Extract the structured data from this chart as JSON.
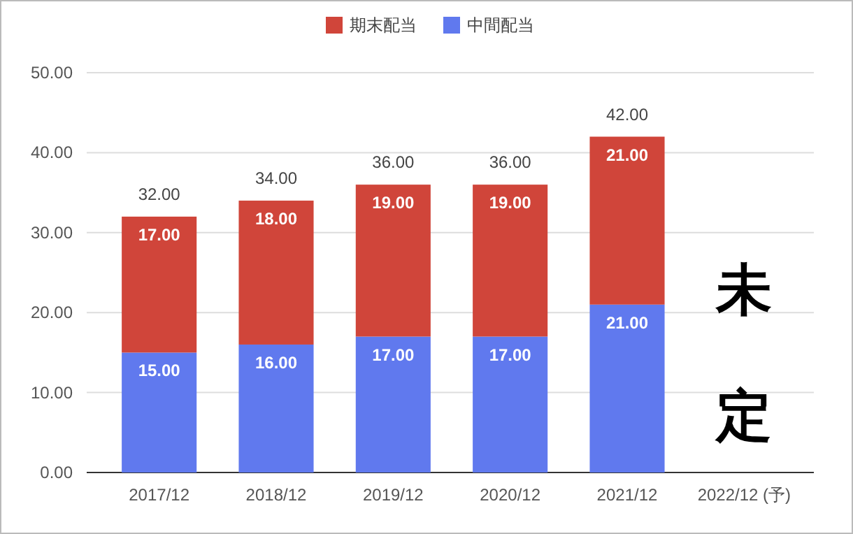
{
  "chart_data": {
    "type": "bar",
    "stacked": true,
    "categories": [
      "2017/12",
      "2018/12",
      "2019/12",
      "2020/12",
      "2021/12",
      "2022/12 (予)"
    ],
    "series": [
      {
        "name": "中間配当",
        "color": "#6079ee",
        "values": [
          15,
          16,
          17,
          17,
          21,
          null
        ],
        "value_labels": [
          "15.00",
          "16.00",
          "17.00",
          "17.00",
          "21.00",
          null
        ]
      },
      {
        "name": "期末配当",
        "color": "#d0453a",
        "values": [
          17,
          18,
          19,
          19,
          21,
          null
        ],
        "value_labels": [
          "17.00",
          "18.00",
          "19.00",
          "19.00",
          "21.00",
          null
        ]
      }
    ],
    "ylim": [
      0,
      50
    ],
    "yticks": [
      {
        "value": 0,
        "label": "0.00"
      },
      {
        "value": 10,
        "label": "10.00"
      },
      {
        "value": 20,
        "label": "20.00"
      },
      {
        "value": 30,
        "label": "30.00"
      },
      {
        "value": 40,
        "label": "40.00"
      },
      {
        "value": 50,
        "label": "50.00"
      }
    ],
    "grid": "y",
    "legend": "top",
    "totals": [
      "32.00",
      "34.00",
      "36.00",
      "36.00",
      "42.00",
      null
    ],
    "annotations": [
      "未定"
    ]
  }
}
